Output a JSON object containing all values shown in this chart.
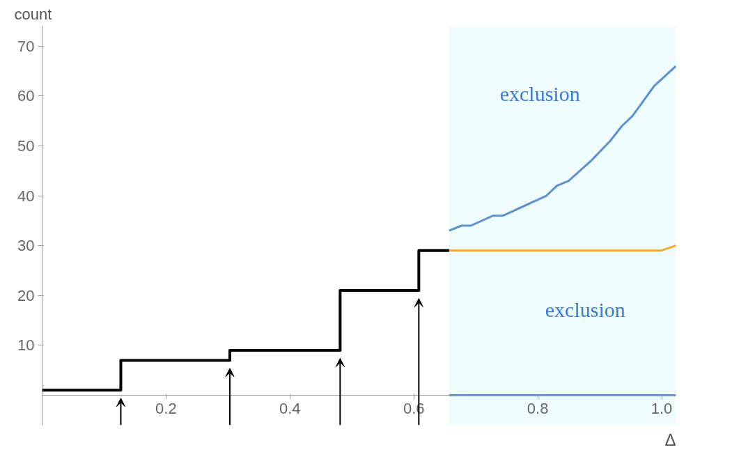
{
  "chart_data": {
    "type": "line",
    "xlabel": "Δ",
    "ylabel": "count",
    "xlim": [
      0,
      1.023
    ],
    "ylim": [
      -6,
      74
    ],
    "xticks": [
      0.2,
      0.4,
      0.6,
      0.8,
      {
        "value": 1.0,
        "label": "1.0"
      }
    ],
    "yticks": [
      10,
      20,
      30,
      40,
      50,
      60,
      70
    ],
    "grid": false,
    "series": [
      {
        "type": "step",
        "color": "#000000",
        "x": [
          0,
          0.127,
          0.303,
          0.481,
          0.608,
          0.657
        ],
        "values": [
          1,
          7,
          9,
          21,
          29,
          29
        ]
      },
      {
        "color": "#f5a623",
        "x": [
          0.657,
          0.999,
          1.023
        ],
        "values": [
          29,
          29,
          30
        ]
      },
      {
        "color": "#5e8fcf",
        "x": [
          0.657,
          0.677,
          0.692,
          0.728,
          0.744,
          0.814,
          0.831,
          0.85,
          0.886,
          0.917,
          0.936,
          0.953,
          0.988,
          1.023
        ],
        "values": [
          33,
          34,
          34,
          36,
          36,
          40,
          42,
          43,
          47,
          51,
          54,
          56,
          62,
          66
        ]
      },
      {
        "color": "#5e8fcf",
        "x": [
          0.657,
          1.023
        ],
        "values": [
          0,
          0
        ]
      }
    ],
    "bands": [
      {
        "axis": "x",
        "from": 0.657,
        "to": 1.023,
        "color": "#eefcfe"
      }
    ],
    "annotations": [
      "exclusion",
      "exclusion"
    ]
  }
}
